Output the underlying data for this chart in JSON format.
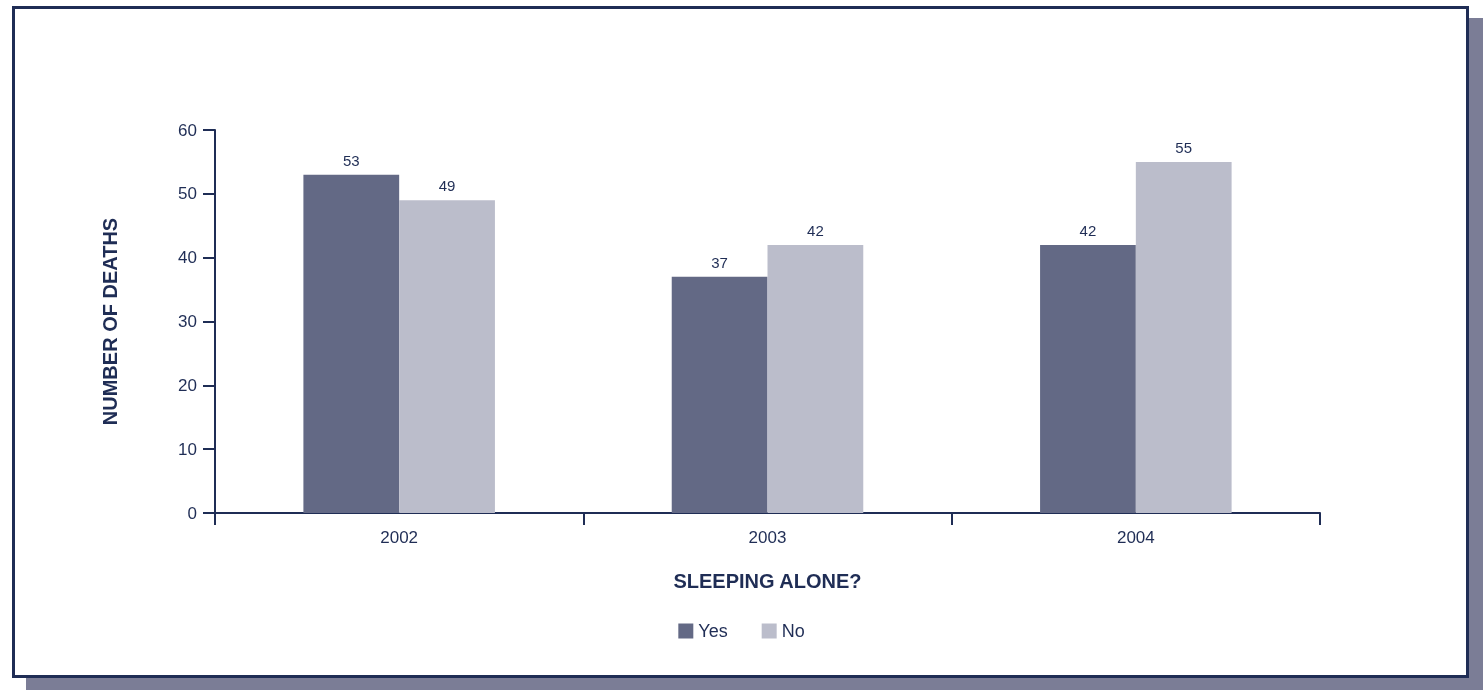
{
  "chart_data": {
    "type": "bar",
    "xlabel": "SLEEPING ALONE?",
    "ylabel": "NUMBER OF DEATHS",
    "categories": [
      "2002",
      "2003",
      "2004"
    ],
    "series": [
      {
        "name": "Yes",
        "color": "#636985",
        "values": [
          53,
          37,
          42
        ]
      },
      {
        "name": "No",
        "color": "#bbbdcb",
        "values": [
          49,
          42,
          55
        ]
      }
    ],
    "ylim": [
      0,
      60
    ],
    "yticks": [
      0,
      10,
      20,
      30,
      40,
      50,
      60
    ],
    "data_labels": true,
    "legend": "bottom"
  }
}
